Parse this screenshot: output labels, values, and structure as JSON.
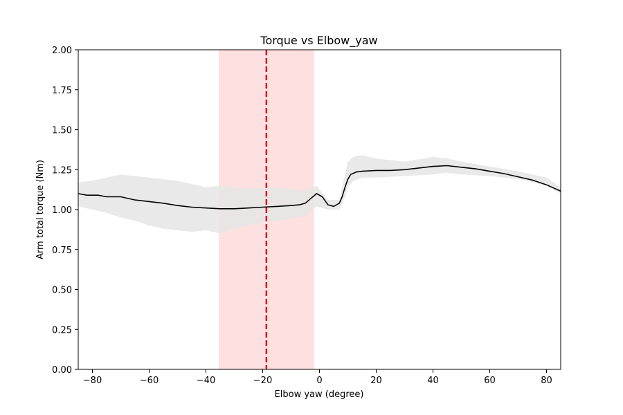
{
  "chart_data": {
    "type": "line",
    "title": "Torque vs Elbow_yaw",
    "xlabel": "Elbow yaw (degree)",
    "ylabel": "Arm total torque (Nm)",
    "xlim": [
      -85,
      85
    ],
    "ylim": [
      0.0,
      2.0
    ],
    "xticks": [
      "−80",
      "−60",
      "−40",
      "−20",
      "0",
      "20",
      "40",
      "60",
      "80"
    ],
    "xtick_values": [
      -80,
      -60,
      -40,
      -20,
      0,
      20,
      40,
      60,
      80
    ],
    "yticks": [
      "0.00",
      "0.25",
      "0.50",
      "0.75",
      "1.00",
      "1.25",
      "1.50",
      "1.75",
      "2.00"
    ],
    "ytick_values": [
      0,
      0.25,
      0.5,
      0.75,
      1.0,
      1.25,
      1.5,
      1.75,
      2.0
    ],
    "grid": false,
    "series": [
      {
        "kind": "mean-line",
        "color": "#000000",
        "x": [
          -85,
          -82,
          -78,
          -75,
          -70,
          -65,
          -60,
          -55,
          -50,
          -45,
          -40,
          -35,
          -30,
          -25,
          -20,
          -15,
          -10,
          -7,
          -5,
          -3,
          -1,
          1,
          3,
          5,
          7,
          8,
          9,
          10,
          11,
          13,
          15,
          20,
          25,
          30,
          35,
          40,
          45,
          50,
          55,
          60,
          65,
          70,
          75,
          80,
          85
        ],
        "y": [
          1.1,
          1.09,
          1.09,
          1.08,
          1.08,
          1.06,
          1.05,
          1.04,
          1.025,
          1.015,
          1.01,
          1.005,
          1.005,
          1.01,
          1.015,
          1.02,
          1.025,
          1.03,
          1.04,
          1.07,
          1.1,
          1.08,
          1.03,
          1.02,
          1.04,
          1.08,
          1.14,
          1.19,
          1.22,
          1.235,
          1.24,
          1.245,
          1.245,
          1.25,
          1.26,
          1.27,
          1.275,
          1.265,
          1.255,
          1.24,
          1.225,
          1.205,
          1.185,
          1.155,
          1.115
        ]
      },
      {
        "kind": "variability-band",
        "color": "#e5e5e5",
        "x": [
          -85,
          -80,
          -75,
          -70,
          -65,
          -60,
          -55,
          -50,
          -45,
          -40,
          -35,
          -30,
          -25,
          -20,
          -15,
          -10,
          -5,
          -1,
          3,
          7,
          9,
          10,
          12,
          15,
          20,
          30,
          40,
          45,
          50,
          60,
          70,
          80,
          85
        ],
        "lower": [
          1.02,
          1.0,
          0.98,
          0.95,
          0.93,
          0.9,
          0.88,
          0.87,
          0.86,
          0.87,
          0.85,
          0.88,
          0.9,
          0.92,
          0.93,
          0.94,
          0.96,
          1.02,
          1.0,
          1.0,
          1.08,
          1.14,
          1.18,
          1.2,
          1.2,
          1.21,
          1.22,
          1.23,
          1.22,
          1.21,
          1.19,
          1.15,
          1.1
        ],
        "upper": [
          1.17,
          1.18,
          1.2,
          1.22,
          1.21,
          1.2,
          1.19,
          1.18,
          1.16,
          1.14,
          1.15,
          1.14,
          1.13,
          1.14,
          1.14,
          1.13,
          1.12,
          1.15,
          1.06,
          1.06,
          1.22,
          1.3,
          1.33,
          1.34,
          1.32,
          1.3,
          1.33,
          1.32,
          1.3,
          1.27,
          1.24,
          1.2,
          1.14
        ]
      }
    ],
    "annotations": [
      {
        "kind": "shaded-span",
        "x0": -35.5,
        "x1": -1.9,
        "color": "#ffe0e0"
      },
      {
        "kind": "vertical-dashed-line",
        "x": -18.7,
        "color": "#e00000"
      }
    ]
  }
}
